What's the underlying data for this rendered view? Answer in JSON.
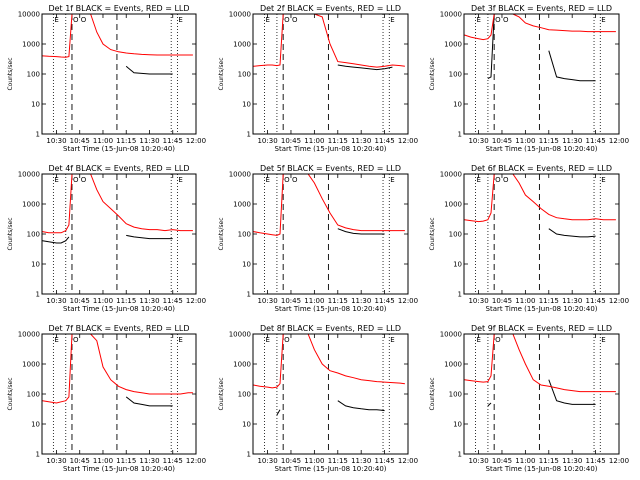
{
  "chart_data": {
    "type": "line",
    "layout_grid": "3x3",
    "y_scale": "log",
    "ylim": [
      1,
      10000
    ],
    "y_ticks": [
      "1",
      "10",
      "100",
      "1000",
      "10000"
    ],
    "ylabel": "Counts/sec",
    "xlabel": "Start Time (15-Jun-08 10:20:40)",
    "x_ticks": [
      "10:30",
      "10:45",
      "11:00",
      "11:15",
      "11:30",
      "11:45",
      "12:00"
    ],
    "xlim": [
      "10:20:40",
      "12:00"
    ],
    "series_colors": {
      "events": "#000000",
      "lld": "#ff0000"
    },
    "panels": [
      {
        "title": "Det 1f BLACK = Events, RED = LLD",
        "markers": [
          "E",
          "O",
          "O",
          "E"
        ],
        "x": [
          "10:21",
          "10:25",
          "10:30",
          "10:33",
          "10:36",
          "10:38",
          "10:40",
          "10:42",
          "10:45",
          "10:48",
          "10:52",
          "10:56",
          "11:00",
          "11:05",
          "11:10",
          "11:15",
          "11:20",
          "11:25",
          "11:30",
          "11:35",
          "11:40",
          "11:45",
          "11:50",
          "11:55",
          "11:58"
        ],
        "series": [
          {
            "name": "Events",
            "color": "#000000",
            "y": [
              null,
              null,
              null,
              null,
              null,
              null,
              null,
              null,
              null,
              null,
              null,
              null,
              null,
              null,
              null,
              180,
              110,
              105,
              100,
              100,
              100,
              100,
              null,
              null,
              null
            ]
          },
          {
            "name": "LLD",
            "color": "#ff0000",
            "y": [
              400,
              390,
              380,
              370,
              360,
              380,
              10000,
              10000,
              10000,
              10000,
              10000,
              2500,
              1000,
              650,
              550,
              500,
              470,
              450,
              440,
              430,
              430,
              430,
              430,
              430,
              430
            ]
          }
        ]
      },
      {
        "title": "Det 2f BLACK = Events, RED = LLD",
        "markers": [
          "E",
          "O",
          "O",
          "E"
        ],
        "x": [
          "10:21",
          "10:25",
          "10:30",
          "10:33",
          "10:36",
          "10:38",
          "10:40",
          "10:42",
          "10:45",
          "10:48",
          "10:52",
          "10:56",
          "11:00",
          "11:05",
          "11:10",
          "11:15",
          "11:20",
          "11:25",
          "11:30",
          "11:35",
          "11:40",
          "11:45",
          "11:50",
          "11:55",
          "11:58"
        ],
        "series": [
          {
            "name": "Events",
            "color": "#000000",
            "y": [
              null,
              null,
              null,
              null,
              null,
              null,
              null,
              null,
              null,
              null,
              null,
              null,
              null,
              null,
              null,
              200,
              180,
              170,
              160,
              150,
              140,
              150,
              170,
              null,
              null
            ]
          },
          {
            "name": "LLD",
            "color": "#ff0000",
            "y": [
              180,
              190,
              200,
              200,
              190,
              200,
              10000,
              10000,
              10000,
              10000,
              10000,
              10000,
              10000,
              8000,
              1000,
              260,
              240,
              220,
              200,
              180,
              170,
              180,
              200,
              190,
              180
            ]
          }
        ]
      },
      {
        "title": "Det 3f BLACK = Events, RED = LLD",
        "markers": [
          "E",
          "O",
          "O",
          "E"
        ],
        "x": [
          "10:21",
          "10:25",
          "10:30",
          "10:33",
          "10:36",
          "10:38",
          "10:40",
          "10:42",
          "10:45",
          "10:48",
          "10:52",
          "10:56",
          "11:00",
          "11:05",
          "11:10",
          "11:15",
          "11:20",
          "11:25",
          "11:30",
          "11:35",
          "11:40",
          "11:45",
          "11:50",
          "11:55",
          "11:58"
        ],
        "series": [
          {
            "name": "Events",
            "color": "#000000",
            "y": [
              null,
              null,
              null,
              null,
              70,
              80,
              10000,
              10000,
              null,
              null,
              null,
              null,
              null,
              null,
              null,
              600,
              80,
              70,
              65,
              60,
              60,
              60,
              null,
              null,
              null
            ]
          },
          {
            "name": "LLD",
            "color": "#ff0000",
            "y": [
              2000,
              1700,
              1500,
              1400,
              1500,
              2000,
              10000,
              10000,
              10000,
              10000,
              10000,
              8000,
              5000,
              4000,
              3500,
              3000,
              2900,
              2800,
              2700,
              2700,
              2600,
              2600,
              2600,
              2600,
              2600
            ]
          }
        ]
      },
      {
        "title": "Det 4f BLACK = Events, RED = LLD",
        "markers": [
          "E",
          "O",
          "O",
          "E"
        ],
        "x": [
          "10:21",
          "10:25",
          "10:30",
          "10:33",
          "10:36",
          "10:38",
          "10:40",
          "10:42",
          "10:45",
          "10:48",
          "10:52",
          "10:56",
          "11:00",
          "11:05",
          "11:10",
          "11:15",
          "11:20",
          "11:25",
          "11:30",
          "11:35",
          "11:40",
          "11:45",
          "11:50",
          "11:55",
          "11:58"
        ],
        "series": [
          {
            "name": "Events",
            "color": "#000000",
            "y": [
              60,
              55,
              50,
              50,
              60,
              80,
              null,
              null,
              null,
              null,
              null,
              null,
              null,
              null,
              null,
              90,
              80,
              75,
              70,
              70,
              70,
              70,
              null,
              null,
              null
            ]
          },
          {
            "name": "LLD",
            "color": "#ff0000",
            "y": [
              120,
              110,
              110,
              110,
              130,
              200,
              10000,
              10000,
              10000,
              10000,
              10000,
              3000,
              1200,
              700,
              400,
              220,
              170,
              150,
              140,
              140,
              130,
              140,
              130,
              130,
              130
            ]
          }
        ]
      },
      {
        "title": "Det 5f BLACK = Events, RED = LLD",
        "markers": [
          "E",
          "O",
          "O",
          "E"
        ],
        "x": [
          "10:21",
          "10:25",
          "10:30",
          "10:33",
          "10:36",
          "10:38",
          "10:40",
          "10:42",
          "10:45",
          "10:48",
          "10:52",
          "10:56",
          "11:00",
          "11:05",
          "11:10",
          "11:15",
          "11:20",
          "11:25",
          "11:30",
          "11:35",
          "11:40",
          "11:45",
          "11:50",
          "11:55",
          "11:58"
        ],
        "series": [
          {
            "name": "Events",
            "color": "#000000",
            "y": [
              null,
              null,
              null,
              null,
              null,
              null,
              null,
              null,
              null,
              null,
              null,
              null,
              null,
              null,
              null,
              150,
              120,
              105,
              100,
              100,
              100,
              100,
              null,
              null,
              null
            ]
          },
          {
            "name": "LLD",
            "color": "#ff0000",
            "y": [
              120,
              110,
              100,
              95,
              90,
              100,
              10000,
              10000,
              10000,
              10000,
              10000,
              10000,
              5000,
              1500,
              500,
              200,
              160,
              140,
              130,
              130,
              130,
              130,
              130,
              130,
              130
            ]
          }
        ]
      },
      {
        "title": "Det 6f BLACK = Events, RED = LLD",
        "markers": [
          "E",
          "O",
          "O",
          "E"
        ],
        "x": [
          "10:21",
          "10:25",
          "10:30",
          "10:33",
          "10:36",
          "10:38",
          "10:40",
          "10:42",
          "10:45",
          "10:48",
          "10:52",
          "10:56",
          "11:00",
          "11:05",
          "11:10",
          "11:15",
          "11:20",
          "11:25",
          "11:30",
          "11:35",
          "11:40",
          "11:45",
          "11:50",
          "11:55",
          "11:58"
        ],
        "series": [
          {
            "name": "Events",
            "color": "#000000",
            "y": [
              null,
              null,
              null,
              null,
              null,
              null,
              null,
              null,
              null,
              null,
              null,
              null,
              null,
              null,
              null,
              150,
              100,
              90,
              85,
              80,
              80,
              85,
              null,
              null,
              null
            ]
          },
          {
            "name": "LLD",
            "color": "#ff0000",
            "y": [
              300,
              280,
              260,
              270,
              300,
              500,
              10000,
              10000,
              10000,
              10000,
              10000,
              5000,
              2000,
              1200,
              700,
              450,
              350,
              320,
              300,
              300,
              300,
              320,
              300,
              300,
              300
            ]
          }
        ]
      },
      {
        "title": "Det 7f BLACK = Events, RED = LLD",
        "markers": [
          "E",
          "O",
          "E"
        ],
        "x": [
          "10:21",
          "10:25",
          "10:30",
          "10:33",
          "10:36",
          "10:38",
          "10:40",
          "10:42",
          "10:45",
          "10:48",
          "10:52",
          "10:56",
          "11:00",
          "11:05",
          "11:10",
          "11:15",
          "11:20",
          "11:25",
          "11:30",
          "11:35",
          "11:40",
          "11:45",
          "11:50",
          "11:55",
          "11:58"
        ],
        "series": [
          {
            "name": "Events",
            "color": "#000000",
            "y": [
              null,
              null,
              null,
              null,
              null,
              null,
              null,
              null,
              null,
              null,
              null,
              null,
              null,
              null,
              null,
              80,
              50,
              45,
              40,
              40,
              40,
              40,
              null,
              null,
              null
            ]
          },
          {
            "name": "LLD",
            "color": "#ff0000",
            "y": [
              60,
              55,
              50,
              55,
              60,
              80,
              10000,
              10000,
              10000,
              10000,
              10000,
              6000,
              800,
              300,
              180,
              140,
              120,
              110,
              100,
              100,
              100,
              100,
              100,
              110,
              110
            ]
          }
        ]
      },
      {
        "title": "Det 8f BLACK = Events, RED = LLD",
        "markers": [
          "E",
          "O",
          "E"
        ],
        "x": [
          "10:21",
          "10:25",
          "10:30",
          "10:33",
          "10:36",
          "10:38",
          "10:40",
          "10:42",
          "10:45",
          "10:48",
          "10:52",
          "10:56",
          "11:00",
          "11:05",
          "11:10",
          "11:15",
          "11:20",
          "11:25",
          "11:30",
          "11:35",
          "11:40",
          "11:45",
          "11:50",
          "11:55",
          "11:58"
        ],
        "series": [
          {
            "name": "Events",
            "color": "#000000",
            "y": [
              null,
              null,
              null,
              null,
              20,
              30,
              null,
              null,
              null,
              null,
              null,
              null,
              null,
              null,
              null,
              60,
              40,
              35,
              32,
              30,
              30,
              28,
              null,
              null,
              null
            ]
          },
          {
            "name": "LLD",
            "color": "#ff0000",
            "y": [
              200,
              180,
              170,
              160,
              170,
              220,
              10000,
              10000,
              10000,
              10000,
              10000,
              10000,
              3000,
              1000,
              600,
              500,
              400,
              350,
              300,
              280,
              260,
              250,
              240,
              230,
              220
            ]
          }
        ]
      },
      {
        "title": "Det 9f BLACK = Events, RED = LLD",
        "markers": [
          "E",
          "O",
          "E"
        ],
        "x": [
          "10:21",
          "10:25",
          "10:30",
          "10:33",
          "10:36",
          "10:38",
          "10:40",
          "10:42",
          "10:45",
          "10:48",
          "10:52",
          "10:56",
          "11:00",
          "11:05",
          "11:10",
          "11:15",
          "11:20",
          "11:25",
          "11:30",
          "11:35",
          "11:40",
          "11:45",
          "11:50",
          "11:55",
          "11:58"
        ],
        "series": [
          {
            "name": "Events",
            "color": "#000000",
            "y": [
              null,
              null,
              null,
              null,
              40,
              50,
              null,
              null,
              null,
              null,
              null,
              null,
              null,
              null,
              null,
              300,
              60,
              50,
              45,
              45,
              45,
              45,
              null,
              null,
              null
            ]
          },
          {
            "name": "LLD",
            "color": "#ff0000",
            "y": [
              300,
              280,
              260,
              250,
              260,
              400,
              10000,
              10000,
              10000,
              10000,
              10000,
              3000,
              1000,
              300,
              200,
              180,
              160,
              140,
              130,
              120,
              120,
              120,
              120,
              120,
              120
            ]
          }
        ]
      }
    ]
  }
}
